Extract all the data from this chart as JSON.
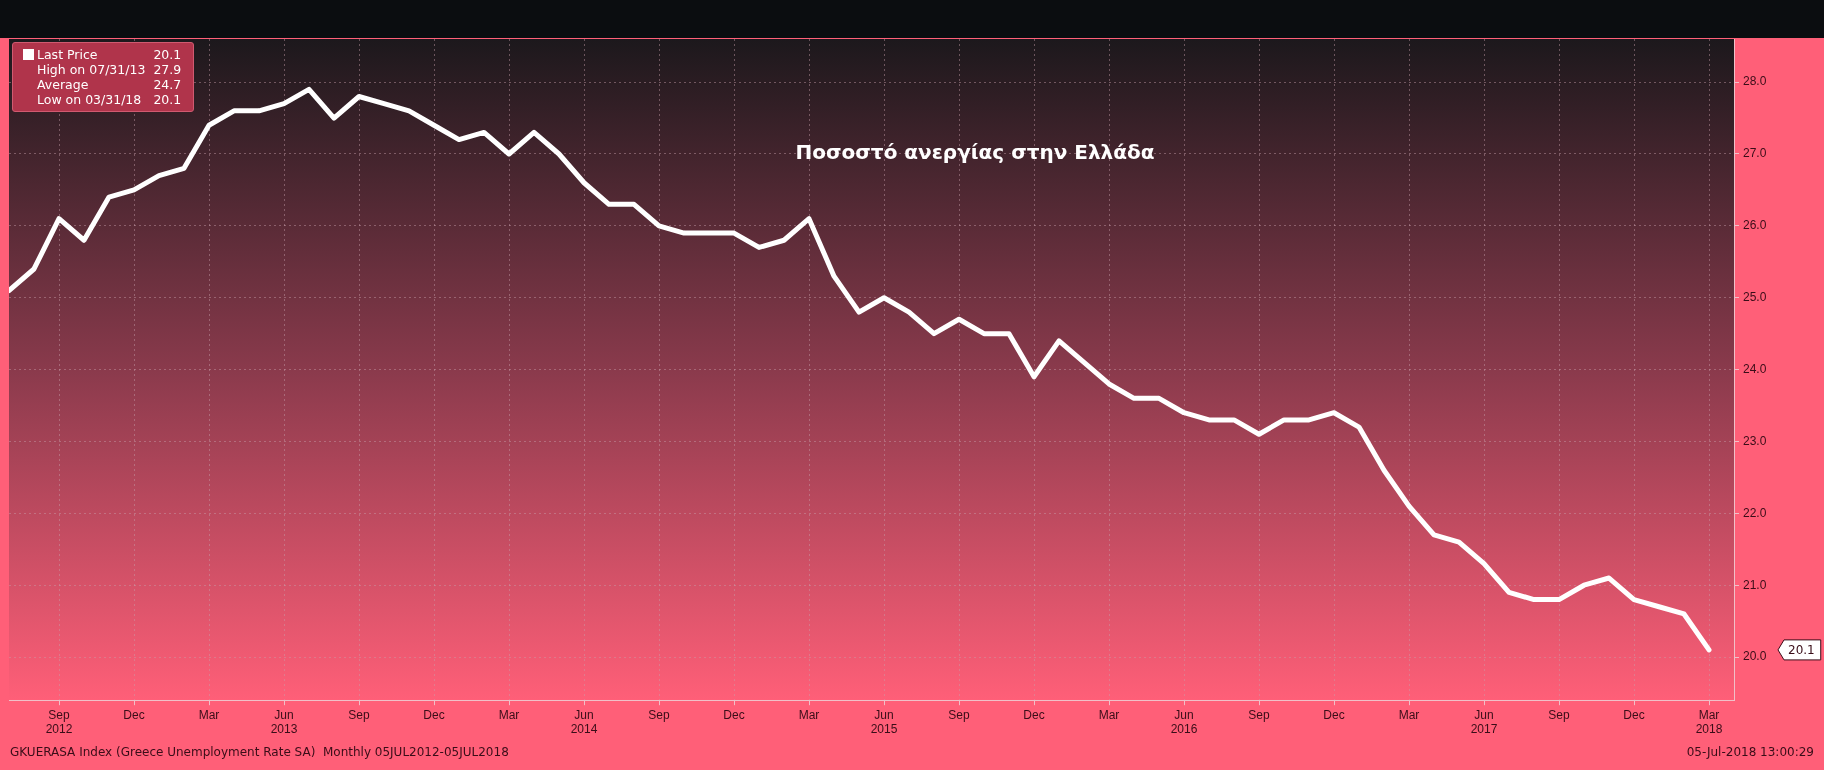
{
  "chart_data": {
    "type": "line",
    "title": "Ποσοστό ανεργίας στην Ελλάδα",
    "x": [
      "2012-07",
      "2012-08",
      "2012-09",
      "2012-10",
      "2012-11",
      "2012-12",
      "2013-01",
      "2013-02",
      "2013-03",
      "2013-04",
      "2013-05",
      "2013-06",
      "2013-07",
      "2013-08",
      "2013-09",
      "2013-10",
      "2013-11",
      "2013-12",
      "2014-01",
      "2014-02",
      "2014-03",
      "2014-04",
      "2014-05",
      "2014-06",
      "2014-07",
      "2014-08",
      "2014-09",
      "2014-10",
      "2014-11",
      "2014-12",
      "2015-01",
      "2015-02",
      "2015-03",
      "2015-04",
      "2015-05",
      "2015-06",
      "2015-07",
      "2015-08",
      "2015-09",
      "2015-10",
      "2015-11",
      "2015-12",
      "2016-01",
      "2016-02",
      "2016-03",
      "2016-04",
      "2016-05",
      "2016-06",
      "2016-07",
      "2016-08",
      "2016-09",
      "2016-10",
      "2016-11",
      "2016-12",
      "2017-01",
      "2017-02",
      "2017-03",
      "2017-04",
      "2017-05",
      "2017-06",
      "2017-07",
      "2017-08",
      "2017-09",
      "2017-10",
      "2017-11",
      "2017-12",
      "2018-01",
      "2018-02",
      "2018-03"
    ],
    "series": [
      {
        "name": "Last Price",
        "color": "#ffffff",
        "values": [
          25.1,
          25.4,
          26.1,
          25.8,
          26.4,
          26.5,
          26.7,
          26.8,
          27.4,
          27.6,
          27.6,
          27.7,
          27.9,
          27.5,
          27.8,
          27.7,
          27.6,
          27.4,
          27.2,
          27.3,
          27.0,
          27.3,
          27.0,
          26.6,
          26.3,
          26.3,
          26.0,
          25.9,
          25.9,
          25.9,
          25.7,
          25.8,
          26.1,
          25.3,
          24.8,
          25.0,
          24.8,
          24.5,
          24.7,
          24.5,
          24.5,
          23.9,
          24.4,
          24.1,
          23.8,
          23.6,
          23.6,
          23.4,
          23.3,
          23.3,
          23.1,
          23.3,
          23.3,
          23.4,
          23.2,
          22.6,
          22.1,
          21.7,
          21.6,
          21.3,
          20.9,
          20.8,
          20.8,
          21.0,
          21.1,
          20.8,
          20.7,
          20.6,
          20.1
        ]
      }
    ],
    "xlim": [
      "2012-07",
      "2018-04"
    ],
    "xticks": [
      {
        "value": "2012-09",
        "label": "Sep\n2012"
      },
      {
        "value": "2012-12",
        "label": "Dec"
      },
      {
        "value": "2013-03",
        "label": "Mar"
      },
      {
        "value": "2013-06",
        "label": "Jun\n2013"
      },
      {
        "value": "2013-09",
        "label": "Sep"
      },
      {
        "value": "2013-12",
        "label": "Dec"
      },
      {
        "value": "2014-03",
        "label": "Mar"
      },
      {
        "value": "2014-06",
        "label": "Jun\n2014"
      },
      {
        "value": "2014-09",
        "label": "Sep"
      },
      {
        "value": "2014-12",
        "label": "Dec"
      },
      {
        "value": "2015-03",
        "label": "Mar"
      },
      {
        "value": "2015-06",
        "label": "Jun\n2015"
      },
      {
        "value": "2015-09",
        "label": "Sep"
      },
      {
        "value": "2015-12",
        "label": "Dec"
      },
      {
        "value": "2016-03",
        "label": "Mar"
      },
      {
        "value": "2016-06",
        "label": "Jun\n2016"
      },
      {
        "value": "2016-09",
        "label": "Sep"
      },
      {
        "value": "2016-12",
        "label": "Dec"
      },
      {
        "value": "2017-03",
        "label": "Mar"
      },
      {
        "value": "2017-06",
        "label": "Jun\n2017"
      },
      {
        "value": "2017-09",
        "label": "Sep"
      },
      {
        "value": "2017-12",
        "label": "Dec"
      },
      {
        "value": "2018-03",
        "label": "Mar\n2018"
      }
    ],
    "ylim": [
      19.4,
      28.6
    ],
    "yticks": [
      {
        "value": 20,
        "label": "20.0"
      },
      {
        "value": 21,
        "label": "21.0"
      },
      {
        "value": 22,
        "label": "22.0"
      },
      {
        "value": 23,
        "label": "23.0"
      },
      {
        "value": 24,
        "label": "24.0"
      },
      {
        "value": 25,
        "label": "25.0"
      },
      {
        "value": 26,
        "label": "26.0"
      },
      {
        "value": 27,
        "label": "27.0"
      },
      {
        "value": 28,
        "label": "28.0"
      }
    ],
    "grid": true,
    "legend": "top left",
    "marker": "none",
    "line_style": "solid",
    "annotations": [
      "High on 07/31/13 27.9",
      "Average 24.7",
      "Low on 03/31/18 20.1",
      "20.1",
      "GKUERASA Index (Greece Unemployment Rate SA)  Monthly 05JUL2012-05JUL2018",
      "05-Jul-2018 13:00:29"
    ]
  }
}
